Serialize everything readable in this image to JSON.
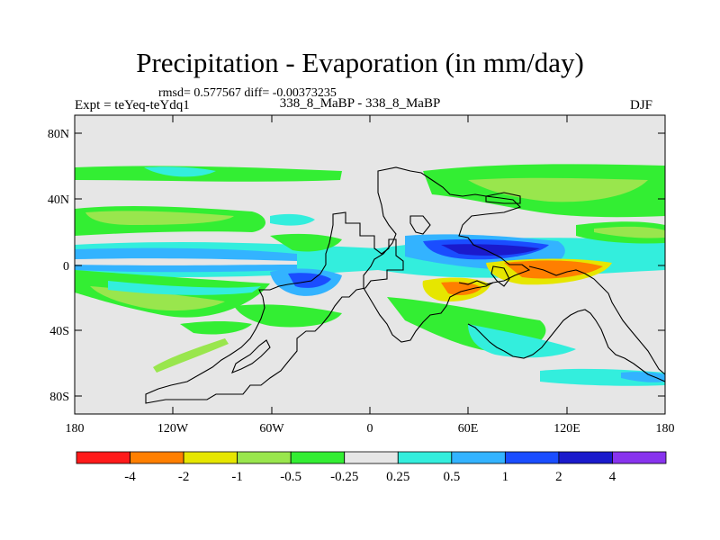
{
  "plot": {
    "title": "Precipitation - Evaporation (in mm/day)",
    "stats": "rmsd= 0.577567 diff=  -0.00373235",
    "experiment": "Expt = teYeq-teYdq1",
    "case": "338_8_MaBP - 338_8_MaBP",
    "season": "DJF"
  },
  "axes": {
    "lat_labels": [
      "80N",
      "40N",
      "0",
      "40S",
      "80S"
    ],
    "lon_labels": [
      "180",
      "120W",
      "60W",
      "0",
      "60E",
      "120E",
      "180"
    ]
  },
  "colorbar": {
    "labels": [
      "-4",
      "-2",
      "-1",
      "-0.5",
      "-0.25",
      "0.25",
      "0.5",
      "1",
      "2",
      "4"
    ],
    "colors": [
      "#ff1a1a",
      "#ff7f00",
      "#e6e600",
      "#99e64d",
      "#33ee33",
      "#e6e6e6",
      "#33eedd",
      "#33b3ff",
      "#1a4dff",
      "#1a1acc",
      "#8833ee"
    ]
  },
  "palette": {
    "land_outline": "#000000",
    "background_field": "#e6e6e6"
  }
}
